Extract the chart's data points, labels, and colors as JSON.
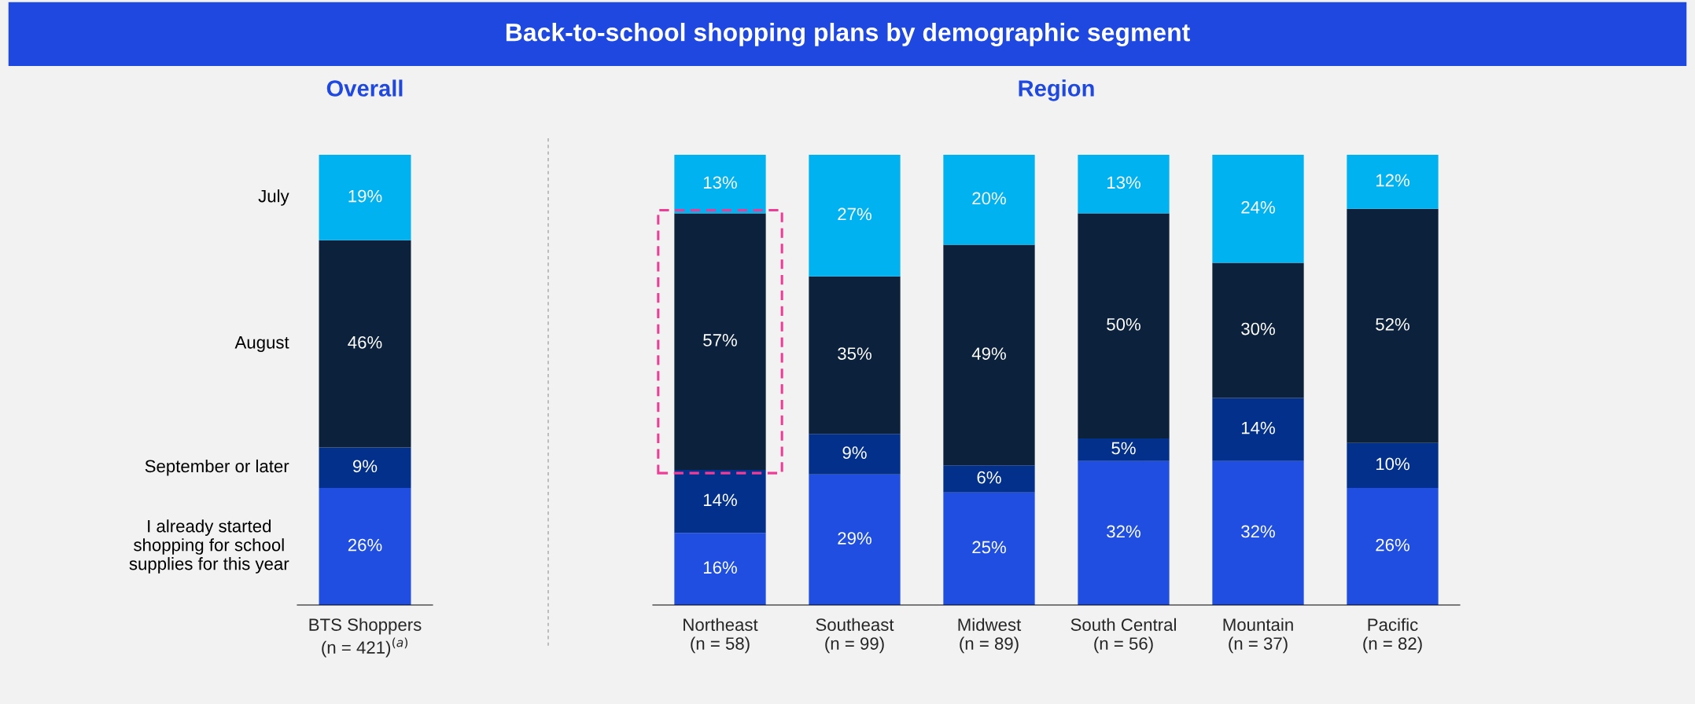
{
  "chart_data": [
    {
      "type": "bar",
      "stacked": true,
      "subtitle": "Overall",
      "annotations": [
        "Back-to-school shopping plans by demographic segment"
      ],
      "categories": [
        "BTS Shoppers\n(n = 421)$^{(a)}$"
      ],
      "series": [
        {
          "name": "I already started\nshopping for school\nsupplies for this year",
          "color": "#1f4ee0",
          "values": [
            26
          ],
          "value_labels": [
            "26%"
          ]
        },
        {
          "name": "September or later",
          "color": "#03308a",
          "values": [
            9
          ],
          "value_labels": [
            "9%"
          ]
        },
        {
          "name": "August",
          "color": "#0c213b",
          "values": [
            46
          ],
          "value_labels": [
            "46%"
          ]
        },
        {
          "name": "July",
          "color": "#00b2f0",
          "values": [
            19
          ],
          "value_labels": [
            "19%"
          ]
        }
      ]
    },
    {
      "type": "bar",
      "stacked": true,
      "subtitle": "Region",
      "categories": [
        "Northeast\n(n = 58)",
        "Southeast\n(n = 99)",
        "Midwest\n(n = 89)",
        "South Central\n(n = 56)",
        "Mountain\n(n = 37)",
        "Pacific\n(n = 82)"
      ],
      "series": [
        {
          "color": "#1f4ee0",
          "values": [
            16,
            29,
            25,
            32,
            32,
            26
          ],
          "value_labels": [
            "16%",
            "29%",
            "25%",
            "32%",
            "32%",
            "26%"
          ]
        },
        {
          "color": "#03308a",
          "values": [
            14,
            9,
            6,
            5,
            14,
            10
          ],
          "value_labels": [
            "14%",
            "9%",
            "6%",
            "5%",
            "14%",
            "10%"
          ]
        },
        {
          "color": "#0c213b",
          "values": [
            57,
            35,
            49,
            50,
            30,
            52
          ],
          "value_labels": [
            "57%",
            "35%",
            "49%",
            "50%",
            "30%",
            "52%"
          ]
        },
        {
          "color": "#00b2f0",
          "values": [
            13,
            27,
            20,
            13,
            24,
            12
          ],
          "value_labels": [
            "13%",
            "27%",
            "20%",
            "13%",
            "24%",
            "12%"
          ]
        }
      ]
    }
  ]
}
